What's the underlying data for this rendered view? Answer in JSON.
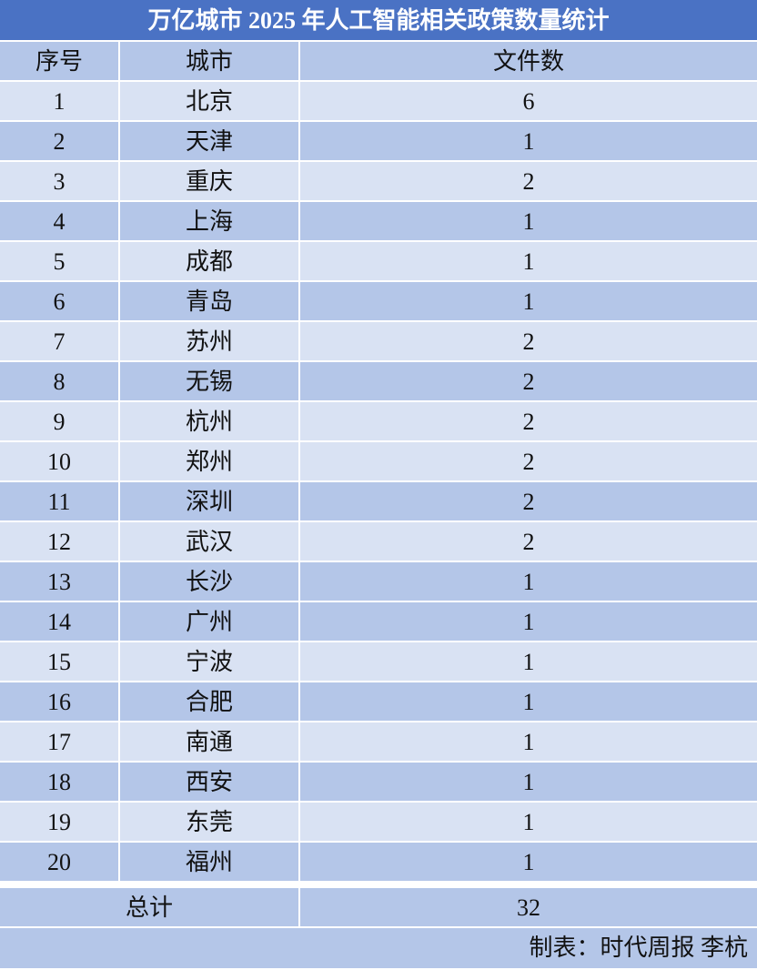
{
  "title": "万亿城市 2025 年人工智能相关政策数量统计",
  "headers": [
    "序号",
    "城市",
    "文件数"
  ],
  "rows": [
    {
      "no": "1",
      "city": "北京",
      "count": "6"
    },
    {
      "no": "2",
      "city": "天津",
      "count": "1"
    },
    {
      "no": "3",
      "city": "重庆",
      "count": "2"
    },
    {
      "no": "4",
      "city": "上海",
      "count": "1"
    },
    {
      "no": "5",
      "city": "成都",
      "count": "1"
    },
    {
      "no": "6",
      "city": "青岛",
      "count": "1"
    },
    {
      "no": "7",
      "city": "苏州",
      "count": "2"
    },
    {
      "no": "8",
      "city": "无锡",
      "count": "2"
    },
    {
      "no": "9",
      "city": "杭州",
      "count": "2"
    },
    {
      "no": "10",
      "city": "郑州",
      "count": "2"
    },
    {
      "no": "11",
      "city": "深圳",
      "count": "2"
    },
    {
      "no": "12",
      "city": "武汉",
      "count": "2"
    },
    {
      "no": "13",
      "city": "长沙",
      "count": "1"
    },
    {
      "no": "14",
      "city": "广州",
      "count": "1"
    },
    {
      "no": "15",
      "city": "宁波",
      "count": "1"
    },
    {
      "no": "16",
      "city": "合肥",
      "count": "1"
    },
    {
      "no": "17",
      "city": "南通",
      "count": "1"
    },
    {
      "no": "18",
      "city": "西安",
      "count": "1"
    },
    {
      "no": "19",
      "city": "东莞",
      "count": "1"
    },
    {
      "no": "20",
      "city": "福州",
      "count": "1"
    }
  ],
  "total": {
    "label": "总计",
    "value": "32"
  },
  "footer": "制表：时代周报 李杭",
  "colors": {
    "title_bg": "#4a72c4",
    "row_dark": "#b4c6e8",
    "row_light": "#d9e2f3"
  }
}
